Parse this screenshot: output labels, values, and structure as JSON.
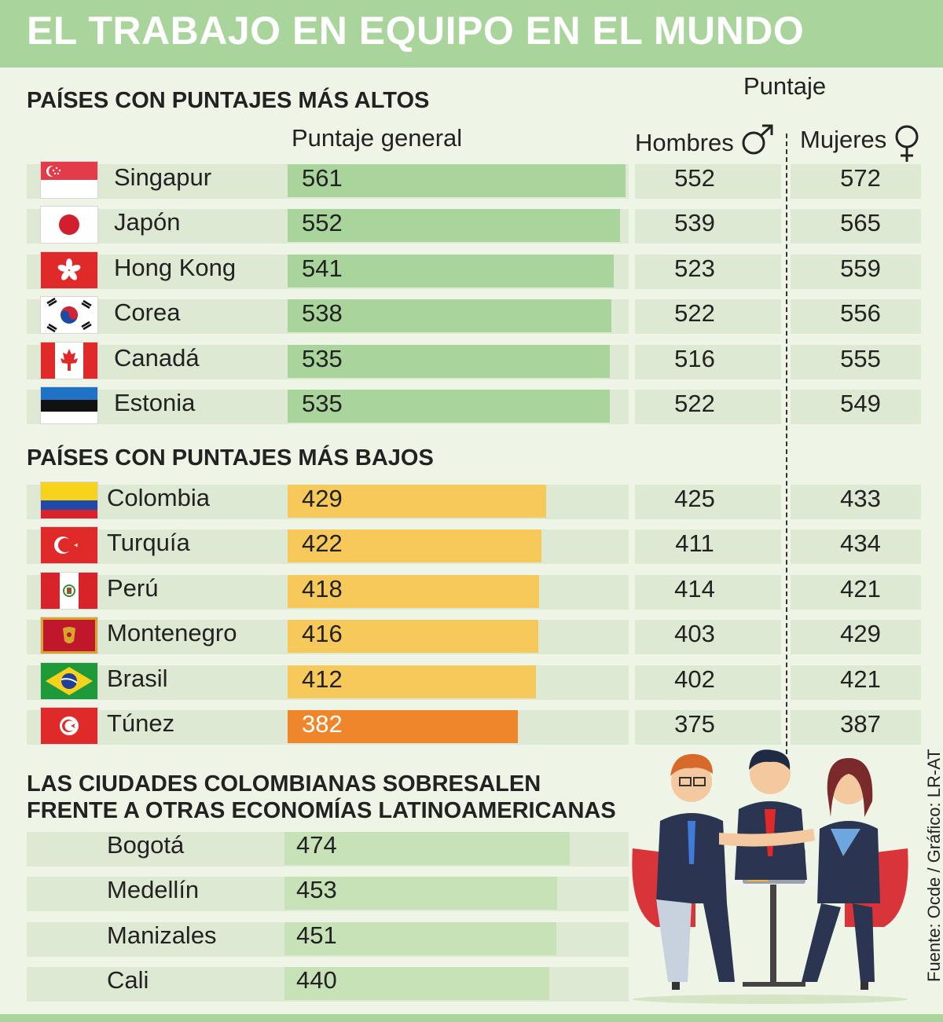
{
  "title": "EL TRABAJO EN EQUIPO EN EL MUNDO",
  "chart_data": {
    "type": "bar",
    "title": "EL TRABAJO EN EQUIPO EN EL MUNDO",
    "column_headers": {
      "puntaje": "Puntaje",
      "general": "Puntaje general",
      "men": "Hombres",
      "women": "Mujeres"
    },
    "xlim": [
      0,
      561
    ],
    "groups": [
      {
        "title": "PAÍSES CON PUNTAJES MÁS ALTOS",
        "rows": [
          {
            "country": "Singapur",
            "flag": "singapore-flag",
            "general": 561,
            "men": 552,
            "women": 572
          },
          {
            "country": "Japón",
            "flag": "japan-flag",
            "general": 552,
            "men": 539,
            "women": 565
          },
          {
            "country": "Hong Kong",
            "flag": "hong-kong-flag",
            "general": 541,
            "men": 523,
            "women": 559
          },
          {
            "country": "Corea",
            "flag": "korea-flag",
            "general": 538,
            "men": 522,
            "women": 556
          },
          {
            "country": "Canadá",
            "flag": "canada-flag",
            "general": 535,
            "men": 516,
            "women": 555
          },
          {
            "country": "Estonia",
            "flag": "estonia-flag",
            "general": 535,
            "men": 522,
            "women": 549
          }
        ]
      },
      {
        "title": "PAÍSES CON PUNTAJES MÁS BAJOS",
        "rows": [
          {
            "country": "Colombia",
            "flag": "colombia-flag",
            "general": 429,
            "men": 425,
            "women": 433
          },
          {
            "country": "Turquía",
            "flag": "turkey-flag",
            "general": 422,
            "men": 411,
            "women": 434
          },
          {
            "country": "Perú",
            "flag": "peru-flag",
            "general": 418,
            "men": 414,
            "women": 421
          },
          {
            "country": "Montenegro",
            "flag": "montenegro-flag",
            "general": 416,
            "men": 403,
            "women": 429
          },
          {
            "country": "Brasil",
            "flag": "brazil-flag",
            "general": 412,
            "men": 402,
            "women": 421
          },
          {
            "country": "Túnez",
            "flag": "tunisia-flag",
            "general": 382,
            "men": 375,
            "women": 387
          }
        ]
      },
      {
        "title_line1": "LAS CIUDADES COLOMBIANAS SOBRESALEN",
        "title_line2": "FRENTE A OTRAS ECONOMÍAS LATINOAMERICANAS",
        "rows": [
          {
            "city": "Bogotá",
            "general": 474
          },
          {
            "city": "Medellín",
            "general": 453
          },
          {
            "city": "Manizales",
            "general": 451
          },
          {
            "city": "Cali",
            "general": 440
          }
        ]
      }
    ],
    "colors": {
      "high_bar": "#a9d49b",
      "low_bar": "#f6c95a",
      "lowest_bar": "#f0862c",
      "city_bar": "#c8e2b8",
      "row_bg": "#dde9d2"
    },
    "source": "Fuente: Ocde / Gráfico: LR-AT"
  }
}
